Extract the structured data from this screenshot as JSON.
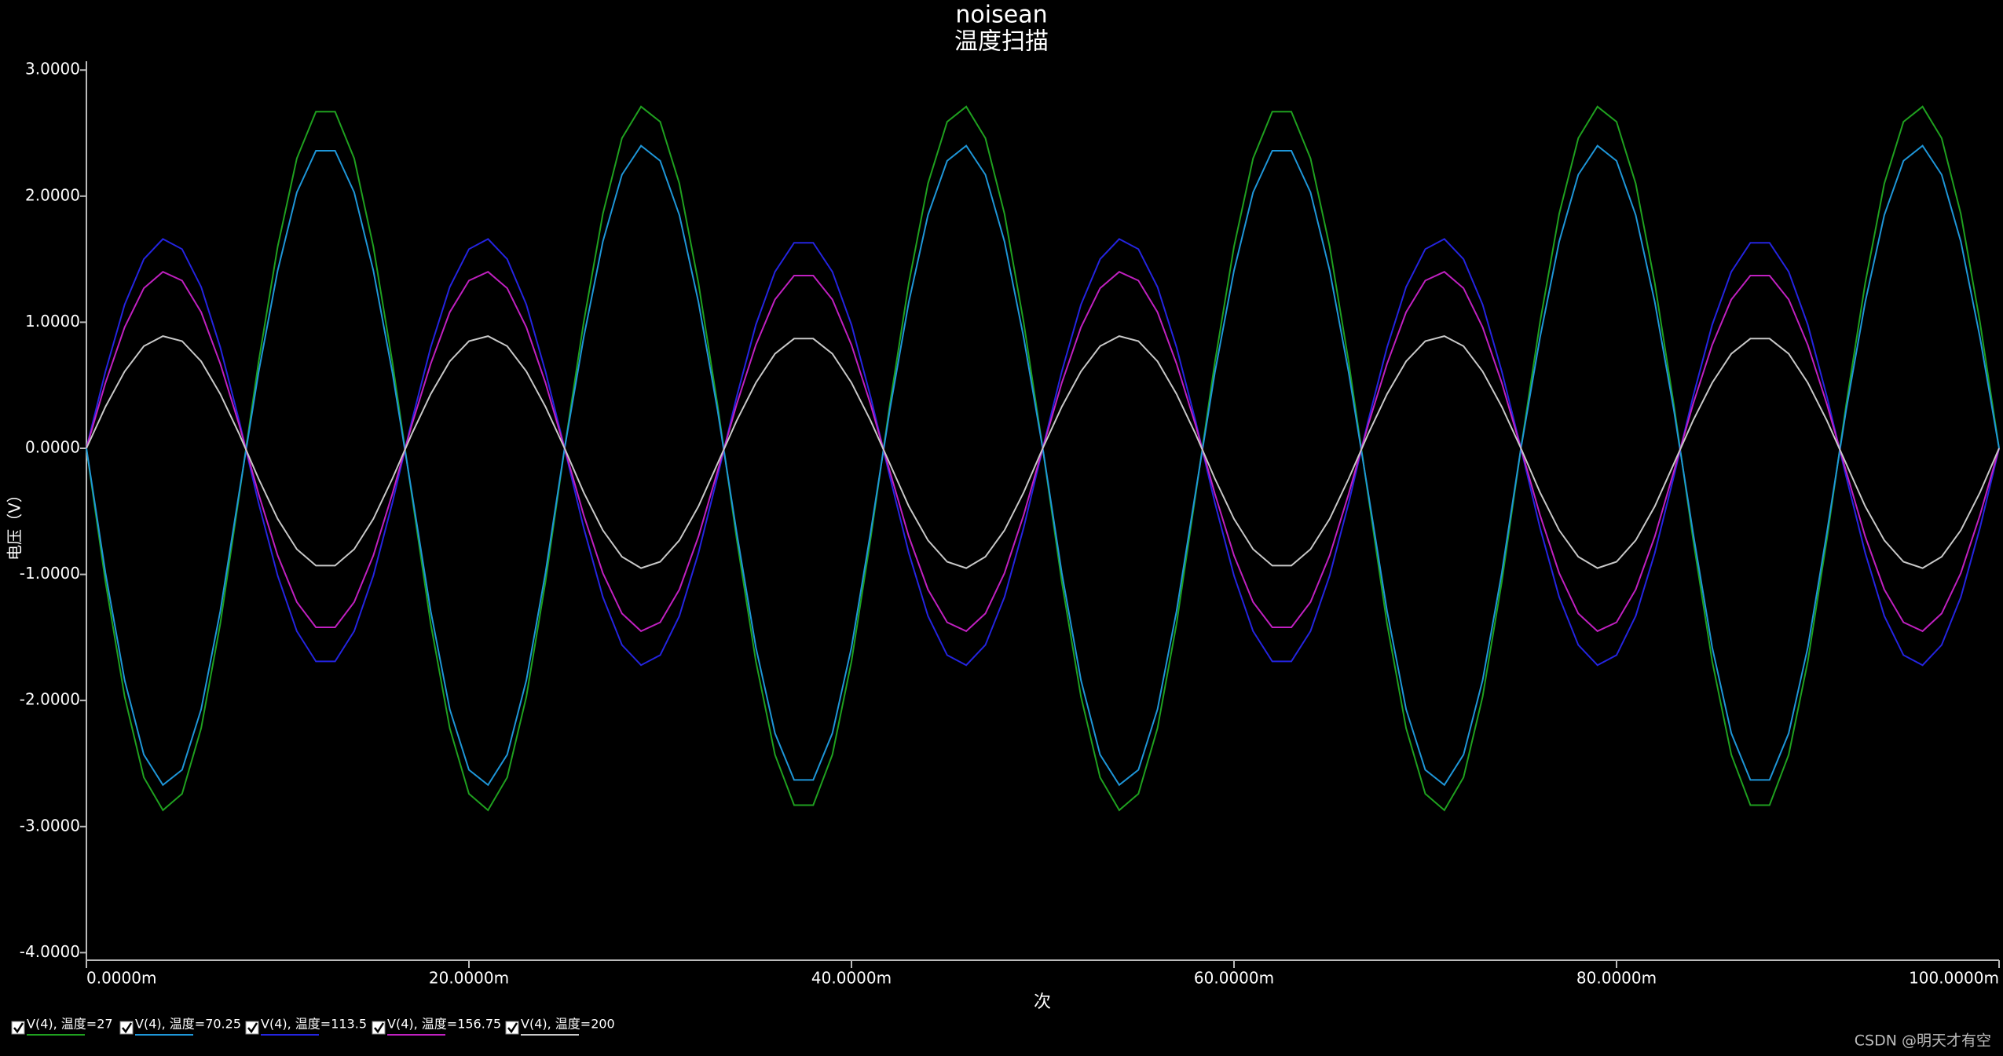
{
  "chart_data": {
    "type": "line",
    "title": "noisean",
    "subtitle": "温度扫描",
    "x_label": "次",
    "y_label": "电压（V）",
    "xlim": [
      0,
      100
    ],
    "ylim": [
      -4.06,
      3.07
    ],
    "xticks": [
      {
        "value": 0,
        "label": "0.0000m"
      },
      {
        "value": 20,
        "label": "20.0000m"
      },
      {
        "value": 40,
        "label": "40.0000m"
      },
      {
        "value": 60,
        "label": "60.0000m"
      },
      {
        "value": 80,
        "label": "80.0000m"
      },
      {
        "value": 100,
        "label": "100.0000m"
      }
    ],
    "yticks": [
      {
        "value": 3,
        "label": "3.0000"
      },
      {
        "value": 2,
        "label": "2.0000"
      },
      {
        "value": 1,
        "label": "1.0000"
      },
      {
        "value": 0,
        "label": "0.0000"
      },
      {
        "value": -1,
        "label": "-1.0000"
      },
      {
        "value": -2,
        "label": "-2.0000"
      },
      {
        "value": -3,
        "label": "-3.0000"
      },
      {
        "value": -4,
        "label": "-4.0000"
      }
    ],
    "x": [
      0,
      1,
      2,
      3,
      4,
      5,
      6,
      7,
      8,
      9,
      10,
      11,
      12,
      13,
      14,
      15,
      16,
      17,
      18,
      19,
      20,
      21,
      22,
      23,
      24,
      25,
      26,
      27,
      28,
      29,
      30,
      31,
      32,
      33,
      34,
      35,
      36,
      37,
      38,
      39,
      40,
      41,
      42,
      43,
      44,
      45,
      46,
      47,
      48,
      49,
      50,
      51,
      52,
      53,
      54,
      55,
      56,
      57,
      58,
      59,
      60,
      61,
      62,
      63,
      64,
      65,
      66,
      67,
      68,
      69,
      70,
      71,
      72,
      73,
      74,
      75,
      76,
      77,
      78,
      79,
      80,
      81,
      82,
      83,
      84,
      85,
      86,
      87,
      88,
      89,
      90,
      91,
      92,
      93,
      94,
      95,
      96,
      97,
      98,
      99,
      100
    ],
    "series": [
      {
        "name": "V(4), 温度=27",
        "color": "#1fa01f",
        "values": [
          0,
          -1.06,
          -1.97,
          -2.61,
          -2.87,
          -2.74,
          -2.22,
          -1.39,
          -0.36,
          0.68,
          1.6,
          2.3,
          2.67,
          2.67,
          2.3,
          1.6,
          0.68,
          -0.36,
          -1.39,
          -2.22,
          -2.74,
          -2.87,
          -2.61,
          -1.97,
          -1.06,
          0,
          1.0,
          1.86,
          2.46,
          2.71,
          2.59,
          2.1,
          1.31,
          0.34,
          -0.72,
          -1.69,
          -2.43,
          -2.83,
          -2.83,
          -2.43,
          -1.69,
          -0.72,
          0.34,
          1.31,
          2.1,
          2.59,
          2.71,
          2.46,
          1.86,
          1.0,
          0,
          -1.06,
          -1.97,
          -2.61,
          -2.87,
          -2.74,
          -2.22,
          -1.39,
          -0.36,
          0.68,
          1.6,
          2.3,
          2.67,
          2.67,
          2.3,
          1.6,
          0.68,
          -0.36,
          -1.39,
          -2.22,
          -2.74,
          -2.87,
          -2.61,
          -1.97,
          -1.06,
          0,
          1.0,
          1.86,
          2.46,
          2.71,
          2.59,
          2.1,
          1.31,
          0.34,
          -0.72,
          -1.69,
          -2.43,
          -2.83,
          -2.83,
          -2.43,
          -1.69,
          -0.72,
          0.34,
          1.31,
          2.1,
          2.59,
          2.71,
          2.46,
          1.86,
          1.0,
          0
        ]
      },
      {
        "name": "V(4), 温度=70.25",
        "color": "#1e96d8",
        "values": [
          0,
          -0.99,
          -1.84,
          -2.43,
          -2.67,
          -2.55,
          -2.07,
          -1.29,
          -0.34,
          0.6,
          1.41,
          2.03,
          2.36,
          2.36,
          2.03,
          1.41,
          0.6,
          -0.34,
          -1.29,
          -2.07,
          -2.55,
          -2.67,
          -2.43,
          -1.84,
          -0.99,
          0,
          0.88,
          1.64,
          2.17,
          2.4,
          2.28,
          1.85,
          1.16,
          0.3,
          -0.67,
          -1.58,
          -2.26,
          -2.63,
          -2.63,
          -2.26,
          -1.58,
          -0.67,
          0.3,
          1.16,
          1.85,
          2.28,
          2.4,
          2.17,
          1.64,
          0.88,
          0,
          -0.99,
          -1.84,
          -2.43,
          -2.67,
          -2.55,
          -2.07,
          -1.29,
          -0.34,
          0.6,
          1.41,
          2.03,
          2.36,
          2.36,
          2.03,
          1.41,
          0.6,
          -0.34,
          -1.29,
          -2.07,
          -2.55,
          -2.67,
          -2.43,
          -1.84,
          -0.99,
          0,
          0.88,
          1.64,
          2.17,
          2.4,
          2.28,
          1.85,
          1.16,
          0.3,
          -0.67,
          -1.58,
          -2.26,
          -2.63,
          -2.63,
          -2.26,
          -1.58,
          -0.67,
          0.3,
          1.16,
          1.85,
          2.28,
          2.4,
          2.17,
          1.64,
          0.88,
          0
        ]
      },
      {
        "name": "V(4), 温度=113.5",
        "color": "#2424e0",
        "values": [
          0,
          0.61,
          1.14,
          1.5,
          1.66,
          1.58,
          1.28,
          0.8,
          0.21,
          -0.43,
          -1.01,
          -1.45,
          -1.69,
          -1.69,
          -1.45,
          -1.01,
          -0.43,
          0.21,
          0.8,
          1.28,
          1.58,
          1.66,
          1.5,
          1.14,
          0.61,
          0,
          -0.63,
          -1.18,
          -1.56,
          -1.72,
          -1.64,
          -1.33,
          -0.83,
          -0.22,
          0.41,
          0.98,
          1.4,
          1.63,
          1.63,
          1.4,
          0.98,
          0.41,
          -0.22,
          -0.83,
          -1.33,
          -1.64,
          -1.72,
          -1.56,
          -1.18,
          -0.63,
          0,
          0.61,
          1.14,
          1.5,
          1.66,
          1.58,
          1.28,
          0.8,
          0.21,
          -0.43,
          -1.01,
          -1.45,
          -1.69,
          -1.69,
          -1.45,
          -1.01,
          -0.43,
          0.21,
          0.8,
          1.28,
          1.58,
          1.66,
          1.5,
          1.14,
          0.61,
          0,
          -0.63,
          -1.18,
          -1.56,
          -1.72,
          -1.64,
          -1.33,
          -0.83,
          -0.22,
          0.41,
          0.98,
          1.4,
          1.63,
          1.63,
          1.4,
          0.98,
          0.41,
          -0.22,
          -0.83,
          -1.33,
          -1.64,
          -1.72,
          -1.56,
          -1.18,
          -0.63,
          0
        ]
      },
      {
        "name": "V(4), 温度=156.75",
        "color": "#c020c0",
        "values": [
          0,
          0.52,
          0.96,
          1.27,
          1.4,
          1.33,
          1.08,
          0.67,
          0.18,
          -0.36,
          -0.85,
          -1.22,
          -1.42,
          -1.42,
          -1.22,
          -0.85,
          -0.36,
          0.18,
          0.67,
          1.08,
          1.33,
          1.4,
          1.27,
          0.96,
          0.52,
          0,
          -0.53,
          -0.99,
          -1.31,
          -1.45,
          -1.38,
          -1.12,
          -0.7,
          -0.18,
          0.35,
          0.82,
          1.18,
          1.37,
          1.37,
          1.18,
          0.82,
          0.35,
          -0.18,
          -0.7,
          -1.12,
          -1.38,
          -1.45,
          -1.31,
          -0.99,
          -0.53,
          0,
          0.52,
          0.96,
          1.27,
          1.4,
          1.33,
          1.08,
          0.67,
          0.18,
          -0.36,
          -0.85,
          -1.22,
          -1.42,
          -1.42,
          -1.22,
          -0.85,
          -0.36,
          0.18,
          0.67,
          1.08,
          1.33,
          1.4,
          1.27,
          0.96,
          0.52,
          0,
          -0.53,
          -0.99,
          -1.31,
          -1.45,
          -1.38,
          -1.12,
          -0.7,
          -0.18,
          0.35,
          0.82,
          1.18,
          1.37,
          1.37,
          1.18,
          0.82,
          0.35,
          -0.18,
          -0.7,
          -1.12,
          -1.38,
          -1.45,
          -1.31,
          -0.99,
          -0.53,
          0
        ]
      },
      {
        "name": "V(4), 温度=200",
        "color": "#c8c8c8",
        "values": [
          0,
          0.33,
          0.61,
          0.81,
          0.89,
          0.85,
          0.69,
          0.43,
          0.11,
          -0.24,
          -0.56,
          -0.8,
          -0.93,
          -0.93,
          -0.8,
          -0.56,
          -0.24,
          0.11,
          0.43,
          0.69,
          0.85,
          0.89,
          0.81,
          0.61,
          0.33,
          0,
          -0.35,
          -0.65,
          -0.86,
          -0.95,
          -0.9,
          -0.73,
          -0.46,
          -0.12,
          0.22,
          0.52,
          0.75,
          0.87,
          0.87,
          0.75,
          0.52,
          0.22,
          -0.12,
          -0.46,
          -0.73,
          -0.9,
          -0.95,
          -0.86,
          -0.65,
          -0.35,
          0,
          0.33,
          0.61,
          0.81,
          0.89,
          0.85,
          0.69,
          0.43,
          0.11,
          -0.24,
          -0.56,
          -0.8,
          -0.93,
          -0.93,
          -0.8,
          -0.56,
          -0.24,
          0.11,
          0.43,
          0.69,
          0.85,
          0.89,
          0.81,
          0.61,
          0.33,
          0,
          -0.35,
          -0.65,
          -0.86,
          -0.95,
          -0.9,
          -0.73,
          -0.46,
          -0.12,
          0.22,
          0.52,
          0.75,
          0.87,
          0.87,
          0.75,
          0.52,
          0.22,
          -0.12,
          -0.46,
          -0.73,
          -0.9,
          -0.95,
          -0.86,
          -0.65,
          -0.35,
          0
        ]
      }
    ]
  },
  "watermark": "CSDN @明天才有空"
}
